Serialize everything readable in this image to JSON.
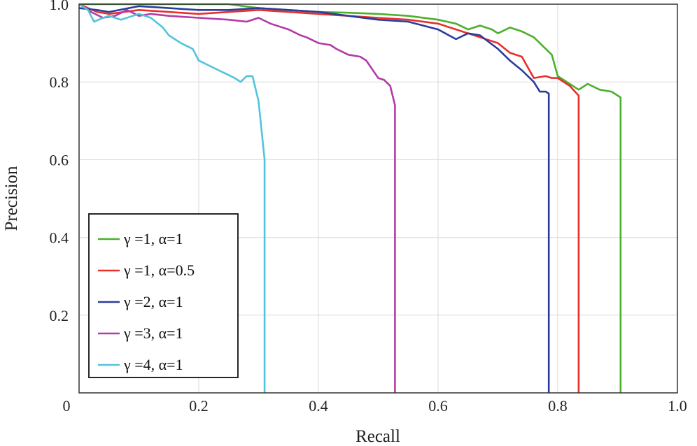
{
  "chart_data": {
    "type": "line",
    "title": "",
    "xlabel": "Recall",
    "ylabel": "Precision",
    "xlim": [
      0,
      1.0
    ],
    "ylim": [
      0,
      1.0
    ],
    "xticks": [
      "0",
      "0.2",
      "0.4",
      "0.6",
      "0.8",
      "1.0"
    ],
    "yticks": [
      "0.2",
      "0.4",
      "0.6",
      "0.8",
      "1.0"
    ],
    "grid": true,
    "legend_position": "bottom-left",
    "series": [
      {
        "name": "γ =1, α=1",
        "color": "#4caf2e",
        "x": [
          0.0,
          0.05,
          0.1,
          0.15,
          0.2,
          0.25,
          0.3,
          0.35,
          0.4,
          0.45,
          0.5,
          0.55,
          0.6,
          0.63,
          0.65,
          0.67,
          0.69,
          0.7,
          0.72,
          0.74,
          0.76,
          0.78,
          0.79,
          0.8,
          0.82,
          0.835,
          0.85,
          0.87,
          0.89,
          0.905,
          0.905
        ],
        "y": [
          1.0,
          1.0,
          1.0,
          1.0,
          1.0,
          1.0,
          0.99,
          0.985,
          0.98,
          0.978,
          0.975,
          0.97,
          0.96,
          0.95,
          0.935,
          0.945,
          0.935,
          0.925,
          0.94,
          0.93,
          0.915,
          0.885,
          0.87,
          0.815,
          0.795,
          0.78,
          0.795,
          0.78,
          0.775,
          0.76,
          0.0
        ]
      },
      {
        "name": "γ =1, α=0.5",
        "color": "#e8302a",
        "x": [
          0.0,
          0.03,
          0.05,
          0.1,
          0.15,
          0.2,
          0.25,
          0.3,
          0.35,
          0.4,
          0.45,
          0.5,
          0.55,
          0.6,
          0.63,
          0.65,
          0.67,
          0.7,
          0.72,
          0.74,
          0.76,
          0.78,
          0.79,
          0.8,
          0.82,
          0.835,
          0.835
        ],
        "y": [
          1.0,
          0.98,
          0.975,
          0.985,
          0.98,
          0.975,
          0.98,
          0.985,
          0.98,
          0.975,
          0.97,
          0.965,
          0.96,
          0.95,
          0.935,
          0.925,
          0.915,
          0.9,
          0.875,
          0.865,
          0.81,
          0.815,
          0.81,
          0.81,
          0.79,
          0.765,
          0.0
        ]
      },
      {
        "name": "γ =2, α=1",
        "color": "#2a3d9c",
        "x": [
          0.0,
          0.03,
          0.05,
          0.1,
          0.15,
          0.2,
          0.25,
          0.3,
          0.35,
          0.4,
          0.45,
          0.5,
          0.55,
          0.6,
          0.63,
          0.65,
          0.67,
          0.7,
          0.72,
          0.74,
          0.76,
          0.77,
          0.78,
          0.785,
          0.785
        ],
        "y": [
          0.99,
          0.985,
          0.98,
          0.995,
          0.99,
          0.985,
          0.985,
          0.99,
          0.985,
          0.98,
          0.97,
          0.96,
          0.955,
          0.935,
          0.91,
          0.925,
          0.92,
          0.885,
          0.855,
          0.83,
          0.8,
          0.775,
          0.775,
          0.77,
          0.0
        ]
      },
      {
        "name": "γ =3, α=1",
        "color": "#b23ba8",
        "x": [
          0.0,
          0.02,
          0.04,
          0.06,
          0.08,
          0.1,
          0.12,
          0.15,
          0.2,
          0.25,
          0.28,
          0.3,
          0.32,
          0.35,
          0.37,
          0.38,
          0.4,
          0.42,
          0.43,
          0.45,
          0.47,
          0.48,
          0.5,
          0.51,
          0.52,
          0.528,
          0.528
        ],
        "y": [
          1.0,
          0.98,
          0.965,
          0.97,
          0.985,
          0.97,
          0.975,
          0.97,
          0.965,
          0.96,
          0.955,
          0.965,
          0.95,
          0.935,
          0.92,
          0.915,
          0.9,
          0.895,
          0.885,
          0.87,
          0.865,
          0.855,
          0.81,
          0.805,
          0.79,
          0.74,
          0.0
        ]
      },
      {
        "name": "γ =4, α=1",
        "color": "#52c4dc",
        "x": [
          0.0,
          0.015,
          0.025,
          0.04,
          0.05,
          0.07,
          0.09,
          0.1,
          0.12,
          0.14,
          0.15,
          0.17,
          0.19,
          0.2,
          0.22,
          0.24,
          0.26,
          0.27,
          0.28,
          0.29,
          0.3,
          0.31,
          0.31
        ],
        "y": [
          1.0,
          0.985,
          0.955,
          0.965,
          0.97,
          0.96,
          0.97,
          0.975,
          0.965,
          0.94,
          0.92,
          0.9,
          0.885,
          0.855,
          0.84,
          0.825,
          0.81,
          0.8,
          0.815,
          0.815,
          0.75,
          0.6,
          0.0
        ]
      }
    ]
  }
}
